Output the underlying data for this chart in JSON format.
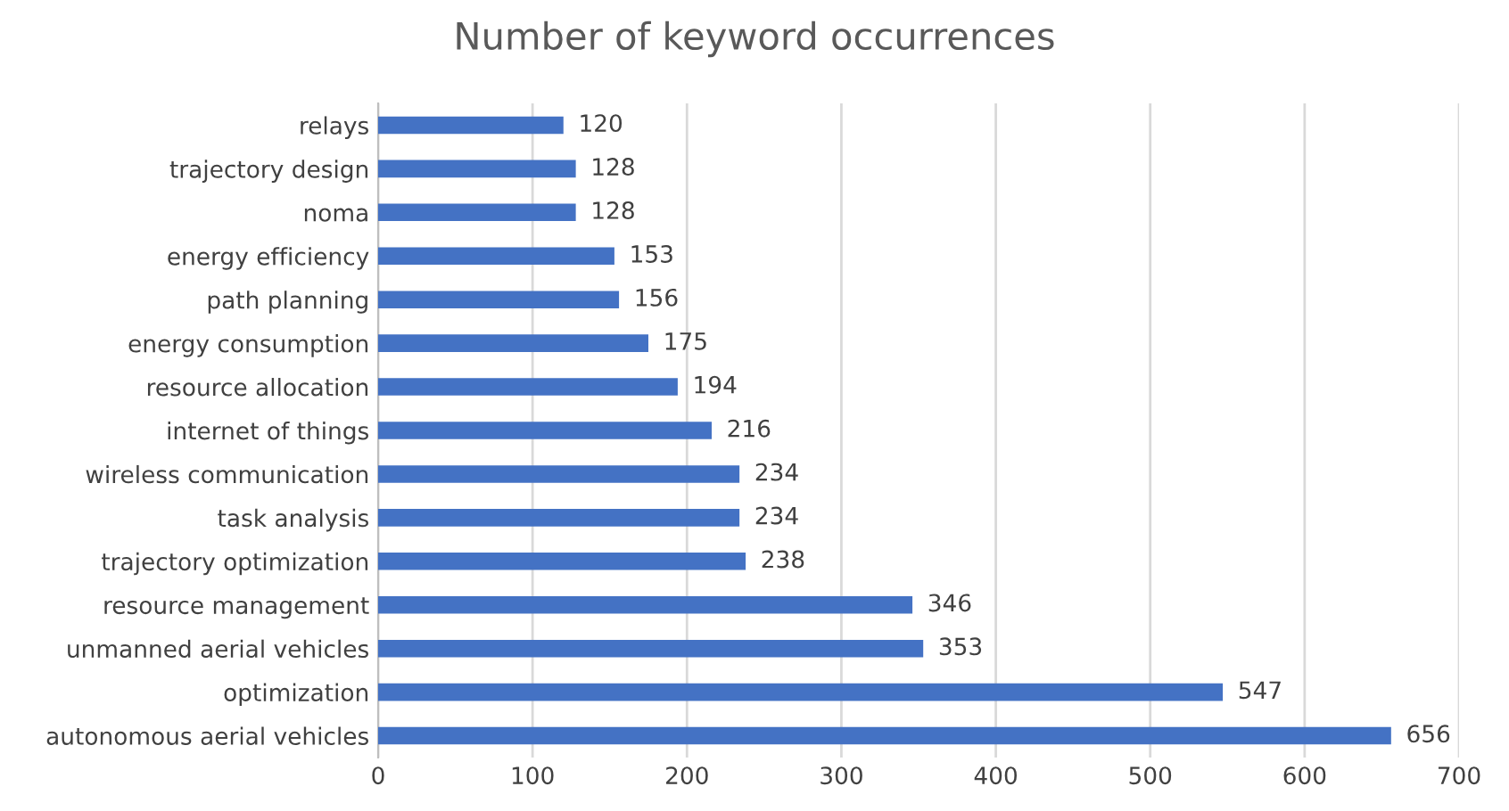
{
  "chart_data": {
    "type": "bar",
    "orientation": "horizontal",
    "title": "Number of keyword occurrences",
    "categories": [
      "relays",
      "trajectory design",
      "noma",
      "energy efficiency",
      "path planning",
      "energy consumption",
      "resource allocation",
      "internet of things",
      "wireless communication",
      "task analysis",
      "trajectory optimization",
      "resource management",
      "unmanned aerial vehicles",
      "optimization",
      "autonomous aerial vehicles"
    ],
    "values": [
      120,
      128,
      128,
      153,
      156,
      175,
      194,
      216,
      234,
      234,
      238,
      346,
      353,
      547,
      656
    ],
    "color": "#4472c4",
    "xlim": [
      0,
      700
    ],
    "xticks": [
      0,
      100,
      200,
      300,
      400,
      500,
      600,
      700
    ],
    "grid": "x",
    "data_labels": true,
    "legend": false
  }
}
